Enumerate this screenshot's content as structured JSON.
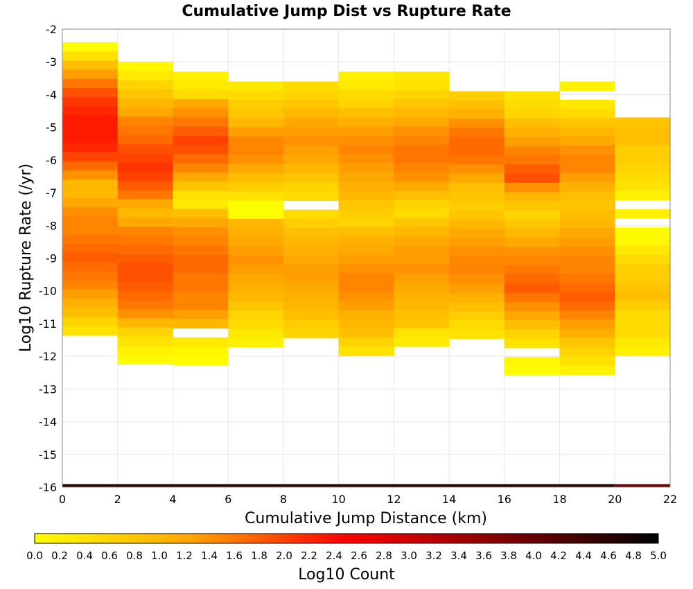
{
  "chart_data": {
    "type": "heatmap",
    "title": "Cumulative Jump Dist vs Rupture Rate",
    "xlabel": "Cumulative Jump Distance (km)",
    "ylabel": "Log10 Rupture Rate (/yr)",
    "xlim": [
      0,
      22
    ],
    "ylim": [
      -16,
      -2
    ],
    "x_ticks": [
      0,
      2,
      4,
      6,
      8,
      10,
      12,
      14,
      16,
      18,
      20,
      22
    ],
    "y_ticks": [
      -2,
      -3,
      -4,
      -5,
      -6,
      -7,
      -8,
      -9,
      -10,
      -11,
      -12,
      -13,
      -14,
      -15,
      -16
    ],
    "grid": true,
    "x_bin_width_km": 2,
    "y_bin_height_log10": 0.28,
    "colorbar": {
      "label": "Log10 Count",
      "range": [
        0.0,
        5.0
      ],
      "ticks": [
        "0.0",
        "0.2",
        "0.4",
        "0.6",
        "0.8",
        "1.0",
        "1.2",
        "1.4",
        "1.6",
        "1.8",
        "2.0",
        "2.2",
        "2.4",
        "2.6",
        "2.8",
        "3.0",
        "3.2",
        "3.4",
        "3.6",
        "3.8",
        "4.0",
        "4.2",
        "4.4",
        "4.6",
        "4.8",
        "5.0"
      ],
      "colormap": [
        "#ffff00",
        "#ffa500",
        "#ff0000",
        "#800000",
        "#000000"
      ]
    },
    "columns": [
      {
        "x": 0,
        "y_top": -2.4,
        "values": [
          0.05,
          0.4,
          0.9,
          1.3,
          1.6,
          1.9,
          2.1,
          2.2,
          2.3,
          2.3,
          2.3,
          2.2,
          2.0,
          1.7,
          1.4,
          1.0,
          1.0,
          1.2,
          1.4,
          1.5,
          1.5,
          1.6,
          1.7,
          1.8,
          1.7,
          1.6,
          1.5,
          1.3,
          1.1,
          0.9,
          0.6,
          0.4
        ]
      },
      {
        "x": 2,
        "y_top": -3.0,
        "values": [
          0.1,
          0.3,
          0.6,
          0.8,
          1.0,
          1.2,
          1.5,
          1.6,
          1.7,
          1.9,
          2.0,
          2.1,
          2.0,
          1.8,
          1.6,
          1.2,
          1.0,
          1.2,
          1.5,
          1.6,
          1.7,
          1.8,
          1.9,
          1.9,
          1.8,
          1.7,
          1.6,
          1.4,
          1.0,
          0.6,
          0.4,
          0.2,
          0.05
        ]
      },
      {
        "x": 4,
        "y_top": -3.3,
        "values": [
          0.2,
          0.3,
          0.5,
          1.2,
          1.4,
          1.6,
          1.8,
          2.0,
          1.9,
          1.7,
          1.5,
          1.2,
          0.8,
          0.4,
          0.3,
          0.9,
          1.2,
          1.4,
          1.5,
          1.6,
          1.7,
          1.7,
          1.6,
          1.6,
          1.5,
          1.5,
          1.3,
          1.0,
          null,
          0.3,
          0.1,
          0.05
        ]
      },
      {
        "x": 6,
        "y_top": -3.6,
        "values": [
          0.3,
          0.5,
          0.7,
          0.8,
          1.0,
          1.3,
          1.5,
          1.5,
          1.4,
          1.2,
          0.9,
          0.7,
          0.4,
          0.0,
          0.0,
          1.0,
          1.1,
          1.2,
          1.3,
          1.4,
          1.3,
          1.2,
          1.1,
          1.0,
          0.8,
          0.6,
          0.5,
          0.3,
          0.2
        ]
      },
      {
        "x": 8,
        "y_top": -3.6,
        "values": [
          0.5,
          0.6,
          0.8,
          1.0,
          1.2,
          1.3,
          1.4,
          1.3,
          1.2,
          1.0,
          0.8,
          0.6,
          0.5,
          null,
          0.5,
          0.7,
          0.9,
          1.0,
          1.1,
          1.2,
          1.3,
          1.3,
          1.2,
          1.1,
          1.0,
          0.9,
          0.7,
          0.6
        ]
      },
      {
        "x": 10,
        "y_top": -3.3,
        "values": [
          0.2,
          0.3,
          0.5,
          0.6,
          0.9,
          1.1,
          1.3,
          1.4,
          1.5,
          1.4,
          1.3,
          1.2,
          1.1,
          1.0,
          0.8,
          0.7,
          0.6,
          0.9,
          1.1,
          1.2,
          1.3,
          1.4,
          1.5,
          1.5,
          1.4,
          1.3,
          1.1,
          1.0,
          0.9,
          0.6,
          0.4
        ]
      },
      {
        "x": 12,
        "y_top": -3.3,
        "values": [
          0.3,
          0.4,
          0.6,
          0.8,
          1.0,
          1.2,
          1.4,
          1.5,
          1.6,
          1.6,
          1.5,
          1.4,
          1.2,
          0.9,
          0.6,
          0.5,
          0.8,
          1.0,
          1.2,
          1.3,
          1.3,
          1.4,
          1.3,
          1.2,
          1.1,
          1.0,
          0.9,
          0.8,
          0.4,
          0.3
        ]
      },
      {
        "x": 14,
        "y_top": -3.9,
        "values": [
          0.7,
          0.9,
          1.1,
          1.4,
          1.6,
          1.7,
          1.7,
          1.6,
          1.4,
          1.2,
          0.9,
          0.8,
          0.7,
          0.8,
          1.0,
          1.2,
          1.3,
          1.4,
          1.5,
          1.5,
          1.4,
          1.3,
          1.1,
          0.9,
          0.7,
          0.5,
          0.4
        ]
      },
      {
        "x": 16,
        "y_top": -3.9,
        "values": [
          0.4,
          0.5,
          0.6,
          0.9,
          1.1,
          1.3,
          1.5,
          1.6,
          1.8,
          1.9,
          1.4,
          1.0,
          0.8,
          0.6,
          0.8,
          1.0,
          1.2,
          1.4,
          1.5,
          1.6,
          1.7,
          1.8,
          1.6,
          1.4,
          1.2,
          0.9,
          0.6,
          0.4,
          null,
          0.1,
          0.05
        ]
      },
      {
        "x": 18,
        "y_top": -3.6,
        "values": [
          0.2,
          null,
          0.3,
          0.5,
          0.8,
          1.0,
          1.2,
          1.4,
          1.5,
          1.5,
          1.3,
          1.1,
          0.9,
          0.8,
          0.9,
          1.0,
          1.2,
          1.3,
          1.4,
          1.5,
          1.5,
          1.6,
          1.7,
          1.8,
          1.7,
          1.5,
          1.3,
          1.1,
          0.8,
          0.6,
          0.4,
          0.2
        ]
      },
      {
        "x": 20,
        "y_top": -4.7,
        "values": [
          0.8,
          0.9,
          0.9,
          0.7,
          0.7,
          0.6,
          0.5,
          0.4,
          0.2,
          null,
          0.2,
          null,
          0.05,
          0.1,
          0.3,
          0.5,
          0.7,
          0.7,
          0.8,
          0.9,
          0.7,
          0.5,
          0.5,
          0.5,
          0.3,
          0.2
        ]
      }
    ],
    "bottom_row": {
      "y": -16.0,
      "x_ranges": [
        [
          0,
          20
        ],
        [
          20,
          22
        ]
      ],
      "values": [
        4.6,
        3.9
      ]
    }
  }
}
